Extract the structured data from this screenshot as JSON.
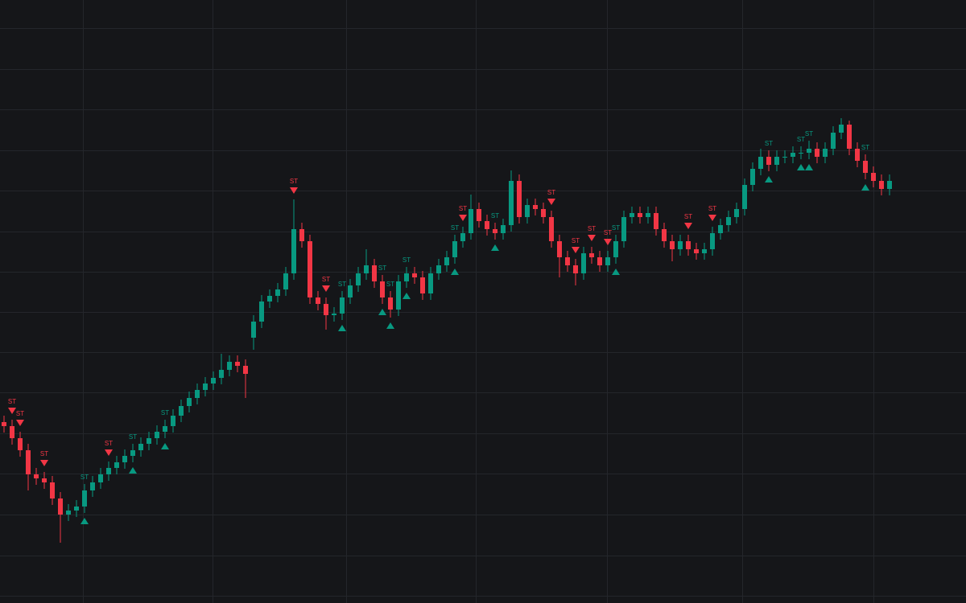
{
  "chart_data": {
    "type": "candlestick",
    "up_color": "#089981",
    "down_color": "#f23645",
    "grid": true,
    "xlim": [
      -0.5,
      119.5
    ],
    "xticks": [
      9.8,
      25.9,
      42.5,
      58.6,
      74.9,
      91.7,
      108
    ],
    "ylim": [
      0,
      750
    ],
    "yticks": [
      9,
      59,
      110,
      161,
      211,
      262,
      312,
      362,
      412,
      462,
      513,
      563,
      614,
      664,
      715
    ],
    "open": [
      225,
      220,
      205,
      190,
      160,
      155,
      150,
      130,
      110,
      115,
      120,
      140,
      150,
      160,
      168,
      175,
      183,
      190,
      198,
      205,
      213,
      220,
      233,
      245,
      255,
      265,
      273,
      280,
      290,
      300,
      295,
      330,
      350,
      375,
      382,
      390,
      410,
      465,
      450,
      380,
      372,
      358,
      360,
      380,
      395,
      410,
      420,
      400,
      380,
      365,
      400,
      410,
      405,
      385,
      410,
      420,
      430,
      450,
      460,
      490,
      475,
      465,
      460,
      470,
      525,
      480,
      495,
      490,
      480,
      450,
      430,
      420,
      410,
      435,
      430,
      420,
      430,
      450,
      480,
      485,
      480,
      485,
      465,
      450,
      440,
      450,
      440,
      435,
      440,
      460,
      470,
      480,
      490,
      520,
      540,
      555,
      545,
      555,
      555,
      560,
      560,
      565,
      555,
      565,
      585,
      595,
      565,
      550,
      535,
      525,
      515
    ],
    "high": [
      233,
      228,
      213,
      198,
      168,
      163,
      158,
      138,
      123,
      128,
      148,
      158,
      168,
      176,
      183,
      191,
      198,
      206,
      213,
      221,
      228,
      241,
      253,
      263,
      273,
      281,
      288,
      310,
      308,
      308,
      303,
      358,
      383,
      390,
      398,
      418,
      502,
      473,
      458,
      388,
      380,
      368,
      388,
      403,
      418,
      440,
      428,
      408,
      388,
      408,
      418,
      418,
      413,
      418,
      428,
      438,
      458,
      468,
      508,
      498,
      483,
      473,
      478,
      538,
      533,
      503,
      503,
      498,
      488,
      458,
      438,
      428,
      443,
      443,
      438,
      438,
      458,
      488,
      493,
      493,
      493,
      493,
      473,
      458,
      458,
      458,
      448,
      448,
      468,
      478,
      488,
      498,
      528,
      548,
      565,
      563,
      563,
      563,
      568,
      568,
      575,
      573,
      573,
      593,
      603,
      600,
      573,
      558,
      543,
      533,
      533
    ],
    "low": [
      212,
      197,
      182,
      140,
      147,
      142,
      122,
      75,
      102,
      107,
      112,
      132,
      142,
      152,
      160,
      167,
      175,
      182,
      190,
      197,
      205,
      212,
      225,
      237,
      247,
      257,
      265,
      272,
      282,
      287,
      255,
      315,
      342,
      367,
      374,
      382,
      402,
      442,
      372,
      364,
      340,
      350,
      352,
      372,
      387,
      402,
      392,
      372,
      355,
      357,
      392,
      397,
      377,
      377,
      402,
      412,
      422,
      442,
      452,
      467,
      457,
      452,
      452,
      462,
      472,
      472,
      482,
      472,
      442,
      405,
      412,
      395,
      402,
      422,
      412,
      412,
      422,
      442,
      472,
      472,
      472,
      457,
      442,
      425,
      432,
      432,
      427,
      427,
      432,
      452,
      462,
      472,
      482,
      512,
      532,
      537,
      537,
      547,
      547,
      552,
      552,
      547,
      547,
      557,
      577,
      557,
      542,
      527,
      517,
      507,
      507
    ],
    "close": [
      220,
      205,
      190,
      160,
      155,
      150,
      130,
      110,
      115,
      120,
      140,
      150,
      160,
      168,
      175,
      183,
      190,
      198,
      205,
      213,
      220,
      233,
      245,
      255,
      265,
      273,
      280,
      290,
      300,
      295,
      285,
      350,
      375,
      382,
      390,
      410,
      465,
      450,
      380,
      372,
      358,
      360,
      380,
      395,
      410,
      420,
      400,
      380,
      365,
      400,
      410,
      405,
      385,
      410,
      420,
      430,
      450,
      460,
      490,
      475,
      465,
      460,
      470,
      525,
      480,
      495,
      490,
      480,
      450,
      430,
      420,
      410,
      435,
      430,
      420,
      430,
      450,
      480,
      485,
      480,
      485,
      465,
      450,
      440,
      450,
      440,
      435,
      440,
      460,
      470,
      480,
      490,
      520,
      540,
      555,
      545,
      555,
      555,
      560,
      560,
      565,
      555,
      565,
      585,
      595,
      565,
      550,
      535,
      525,
      515,
      525
    ],
    "signals": [
      {
        "index": 1,
        "side": "sell",
        "label": "ST"
      },
      {
        "index": 2,
        "side": "sell",
        "label": "ST"
      },
      {
        "index": 5,
        "side": "sell",
        "label": "ST"
      },
      {
        "index": 10,
        "side": "buy",
        "label": "ST"
      },
      {
        "index": 13,
        "side": "sell",
        "label": "ST"
      },
      {
        "index": 16,
        "side": "buy",
        "label": "ST"
      },
      {
        "index": 20,
        "side": "buy",
        "label": "ST"
      },
      {
        "index": 36,
        "side": "sell",
        "label": "ST"
      },
      {
        "index": 40,
        "side": "sell",
        "label": "ST"
      },
      {
        "index": 42,
        "side": "buy",
        "label": "ST"
      },
      {
        "index": 47,
        "side": "buy",
        "label": "ST"
      },
      {
        "index": 48,
        "side": "buy",
        "label": "ST"
      },
      {
        "index": 50,
        "side": "buy",
        "label": "ST"
      },
      {
        "index": 56,
        "side": "buy",
        "label": "ST"
      },
      {
        "index": 57,
        "side": "sell",
        "label": "ST"
      },
      {
        "index": 61,
        "side": "buy",
        "label": "ST"
      },
      {
        "index": 68,
        "side": "sell",
        "label": "ST"
      },
      {
        "index": 71,
        "side": "sell",
        "label": "ST"
      },
      {
        "index": 73,
        "side": "sell",
        "label": "ST"
      },
      {
        "index": 75,
        "side": "sell",
        "label": "ST"
      },
      {
        "index": 76,
        "side": "buy",
        "label": "ST"
      },
      {
        "index": 85,
        "side": "sell",
        "label": "ST"
      },
      {
        "index": 88,
        "side": "sell",
        "label": "ST"
      },
      {
        "index": 95,
        "side": "buy",
        "label": "ST"
      },
      {
        "index": 99,
        "side": "buy",
        "label": "ST"
      },
      {
        "index": 100,
        "side": "buy",
        "label": "ST"
      },
      {
        "index": 107,
        "side": "buy",
        "label": "ST"
      }
    ]
  }
}
